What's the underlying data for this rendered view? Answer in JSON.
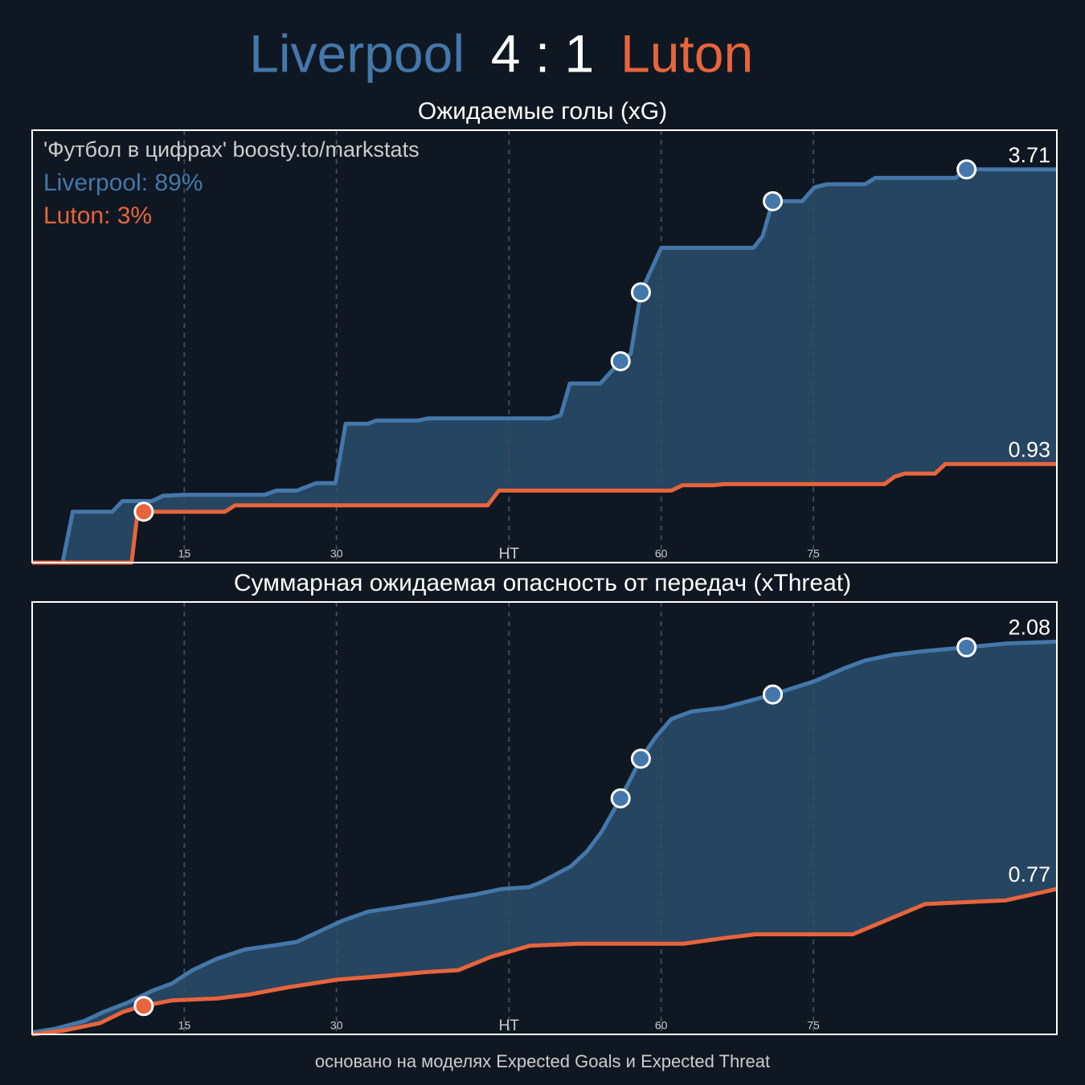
{
  "header": {
    "home": "Liverpool",
    "score": "4 : 1",
    "away": "Luton"
  },
  "footer": "основано на моделях Expected Goals и Expected Threat",
  "chart_data": [
    {
      "type": "line",
      "title": "Ожидаемые голы (xG)",
      "annotations": [
        "'Футбол в цифрах' boosty.to/markstats",
        "Liverpool: 89%",
        "Luton: 3%"
      ],
      "xlim": [
        0,
        101
      ],
      "ylim": [
        0,
        4.08
      ],
      "grid": true,
      "xticks": [
        15,
        30,
        {
          "value": 47,
          "label": "HT"
        },
        {
          "value": 62,
          "label": "60"
        },
        {
          "value": 77,
          "label": "75"
        }
      ],
      "series": [
        {
          "name": "Liverpool",
          "color": "#4477aa",
          "x": [
            0,
            3.0,
            4.0,
            7.9,
            8.9,
            11.8,
            12.9,
            15.0,
            22.9,
            24.1,
            26.1,
            28.0,
            29.9,
            30.9,
            33.1,
            33.9,
            38.0,
            39.0,
            51.1,
            52.1,
            53.0,
            56.0,
            58.0,
            59.0,
            60.0,
            62.0,
            71.1,
            72.0,
            73.0,
            75.9,
            77.1,
            78.3,
            82.1,
            83.1,
            91.0,
            92.1,
            101
          ],
          "values": [
            0,
            0,
            0.48,
            0.48,
            0.58,
            0.58,
            0.63,
            0.64,
            0.64,
            0.68,
            0.68,
            0.75,
            0.75,
            1.31,
            1.31,
            1.34,
            1.34,
            1.36,
            1.36,
            1.39,
            1.69,
            1.69,
            1.9,
            1.97,
            2.55,
            2.97,
            2.97,
            3.08,
            3.41,
            3.41,
            3.54,
            3.57,
            3.57,
            3.63,
            3.63,
            3.71,
            3.71
          ],
          "goals": {
            "x": [
              58.0,
              60.0,
              73.0,
              92.1
            ],
            "values": [
              1.9,
              2.55,
              3.41,
              3.71
            ]
          }
        },
        {
          "name": "Luton",
          "color": "#e8643c",
          "x": [
            0,
            9.8,
            10.4,
            19.0,
            20.0,
            44.9,
            46.0,
            63.0,
            64.1,
            67.1,
            68.2,
            84.0,
            85.0,
            86.0,
            89.0,
            90.0,
            101
          ],
          "values": [
            0,
            0,
            0.48,
            0.48,
            0.54,
            0.54,
            0.68,
            0.68,
            0.73,
            0.73,
            0.74,
            0.74,
            0.81,
            0.84,
            0.84,
            0.93,
            0.93
          ],
          "goals": {
            "x": [
              11.0
            ],
            "values": [
              0.48
            ]
          }
        }
      ]
    },
    {
      "type": "line",
      "title": "Суммарная ожидаемая опасность от передач (xThreat)",
      "annotations": [],
      "xlim": [
        0,
        101
      ],
      "ylim": [
        0,
        2.29
      ],
      "grid": true,
      "xticks": [
        15,
        30,
        {
          "value": 47,
          "label": "HT"
        },
        {
          "value": 62,
          "label": "60"
        },
        {
          "value": 77,
          "label": "75"
        }
      ],
      "series": [
        {
          "name": "Liverpool",
          "color": "#4477aa",
          "x": [
            0,
            2.3,
            5.1,
            7.1,
            9.5,
            11.8,
            13.8,
            15.8,
            18.2,
            21.0,
            23.7,
            26.1,
            28.1,
            30.5,
            33.1,
            35.6,
            39.2,
            41.2,
            43.6,
            46.3,
            49.0,
            50.3,
            53.1,
            54.7,
            56.1,
            58.0,
            60.0,
            61.4,
            63.0,
            65.0,
            68.2,
            73.0,
            77.1,
            80.1,
            82.1,
            84.8,
            88.0,
            92.1,
            96.0,
            101
          ],
          "values": [
            0.01,
            0.03,
            0.07,
            0.12,
            0.17,
            0.23,
            0.27,
            0.34,
            0.4,
            0.45,
            0.47,
            0.49,
            0.54,
            0.6,
            0.65,
            0.67,
            0.7,
            0.72,
            0.74,
            0.77,
            0.78,
            0.81,
            0.89,
            0.97,
            1.07,
            1.25,
            1.46,
            1.57,
            1.67,
            1.71,
            1.73,
            1.8,
            1.87,
            1.94,
            1.98,
            2.01,
            2.03,
            2.05,
            2.07,
            2.08
          ],
          "goals": {
            "x": [
              58.0,
              60.0,
              73.0,
              92.1
            ],
            "values": [
              1.25,
              1.46,
              1.8,
              2.05
            ]
          }
        },
        {
          "name": "Luton",
          "color": "#e8643c",
          "x": [
            0,
            3.1,
            6.7,
            9.0,
            10.9,
            13.8,
            18.2,
            21.3,
            25.3,
            30.1,
            34.8,
            38.8,
            42.0,
            45.2,
            49.1,
            53.9,
            64.2,
            68.2,
            71.3,
            80.9,
            84.0,
            88.0,
            92.0,
            96.0,
            101
          ],
          "values": [
            0,
            0.02,
            0.06,
            0.12,
            0.15,
            0.18,
            0.19,
            0.21,
            0.25,
            0.29,
            0.31,
            0.33,
            0.34,
            0.41,
            0.47,
            0.48,
            0.48,
            0.51,
            0.53,
            0.53,
            0.6,
            0.69,
            0.7,
            0.71,
            0.77
          ],
          "goals": {
            "x": [
              11.0
            ],
            "values": [
              0.15
            ]
          }
        }
      ]
    }
  ]
}
